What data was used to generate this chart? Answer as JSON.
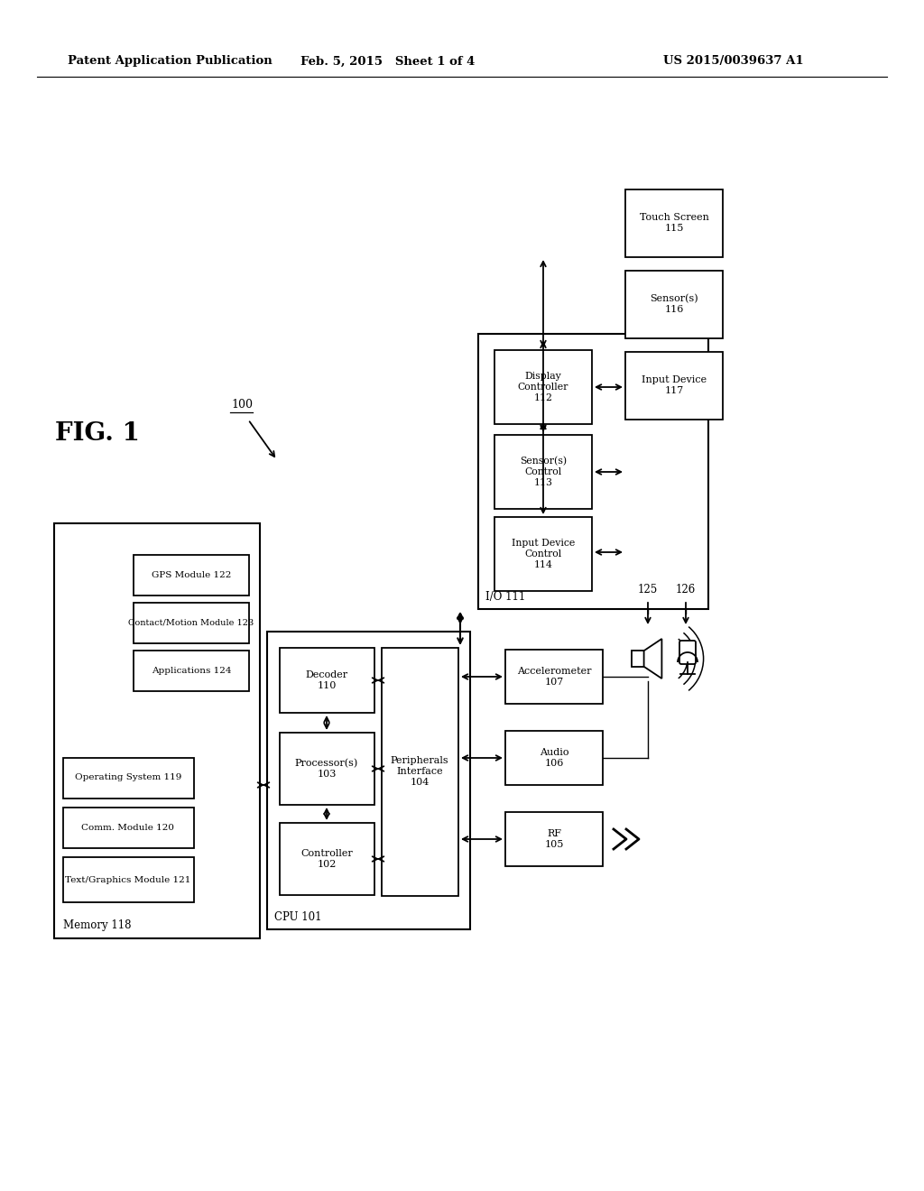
{
  "bg_color": "#ffffff",
  "header_left": "Patent Application Publication",
  "header_mid": "Feb. 5, 2015   Sheet 1 of 4",
  "header_right": "US 2015/0039637 A1",
  "fig_label": "FIG. 1"
}
